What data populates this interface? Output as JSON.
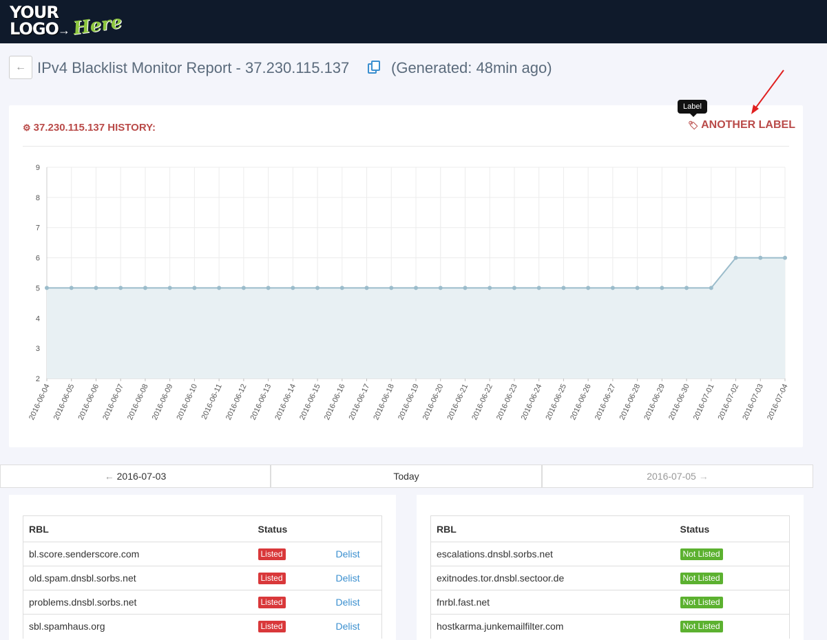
{
  "header": {
    "logo": {
      "line1": "YOUR",
      "line2": "LOGO",
      "accent": "Here"
    }
  },
  "page": {
    "title": "IPv4 Blacklist Monitor Report - 37.230.115.137",
    "generated": "(Generated: 48min ago)"
  },
  "history_card": {
    "title": "37.230.115.137 HISTORY:",
    "tooltip": "Label",
    "label": "ANOTHER LABEL"
  },
  "chart_data": {
    "type": "area",
    "x": [
      "2016-06-04",
      "2016-06-05",
      "2016-06-06",
      "2016-06-07",
      "2016-06-08",
      "2016-06-09",
      "2016-06-10",
      "2016-06-11",
      "2016-06-12",
      "2016-06-13",
      "2016-06-14",
      "2016-06-15",
      "2016-06-16",
      "2016-06-17",
      "2016-06-18",
      "2016-06-19",
      "2016-06-20",
      "2016-06-21",
      "2016-06-22",
      "2016-06-23",
      "2016-06-24",
      "2016-06-25",
      "2016-06-26",
      "2016-06-27",
      "2016-06-28",
      "2016-06-29",
      "2016-06-30",
      "2016-07-01",
      "2016-07-02",
      "2016-07-03",
      "2016-07-04"
    ],
    "series": [
      {
        "values": [
          5,
          5,
          5,
          5,
          5,
          5,
          5,
          5,
          5,
          5,
          5,
          5,
          5,
          5,
          5,
          5,
          5,
          5,
          5,
          5,
          5,
          5,
          5,
          5,
          5,
          5,
          5,
          5,
          6,
          6,
          6
        ]
      }
    ],
    "ylim": [
      2,
      9
    ],
    "yticks": [
      2,
      3,
      4,
      5,
      6,
      7,
      8,
      9
    ],
    "grid": true,
    "line_color": "#9bbccb",
    "fill_color": "#e8f0f3"
  },
  "pager": {
    "prev": "2016-07-03",
    "today": "Today",
    "next": "2016-07-05"
  },
  "tables": {
    "headers": {
      "rbl": "RBL",
      "status": "Status"
    },
    "left_rows": [
      {
        "rbl": "bl.score.senderscore.com",
        "status": "Listed",
        "action": "Delist"
      },
      {
        "rbl": "old.spam.dnsbl.sorbs.net",
        "status": "Listed",
        "action": "Delist"
      },
      {
        "rbl": "problems.dnsbl.sorbs.net",
        "status": "Listed",
        "action": "Delist"
      },
      {
        "rbl": "sbl.spamhaus.org",
        "status": "Listed",
        "action": "Delist"
      }
    ],
    "right_rows": [
      {
        "rbl": "escalations.dnsbl.sorbs.net",
        "status": "Not Listed"
      },
      {
        "rbl": "exitnodes.tor.dnsbl.sectoor.de",
        "status": "Not Listed"
      },
      {
        "rbl": "fnrbl.fast.net",
        "status": "Not Listed"
      },
      {
        "rbl": "hostkarma.junkemailfilter.com",
        "status": "Not Listed"
      }
    ]
  },
  "colors": {
    "accent_red": "#b94a48",
    "listed": "#d9383a",
    "not_listed": "#5cb130",
    "link": "#3a8fcf",
    "topbar": "#0f1a2b"
  }
}
